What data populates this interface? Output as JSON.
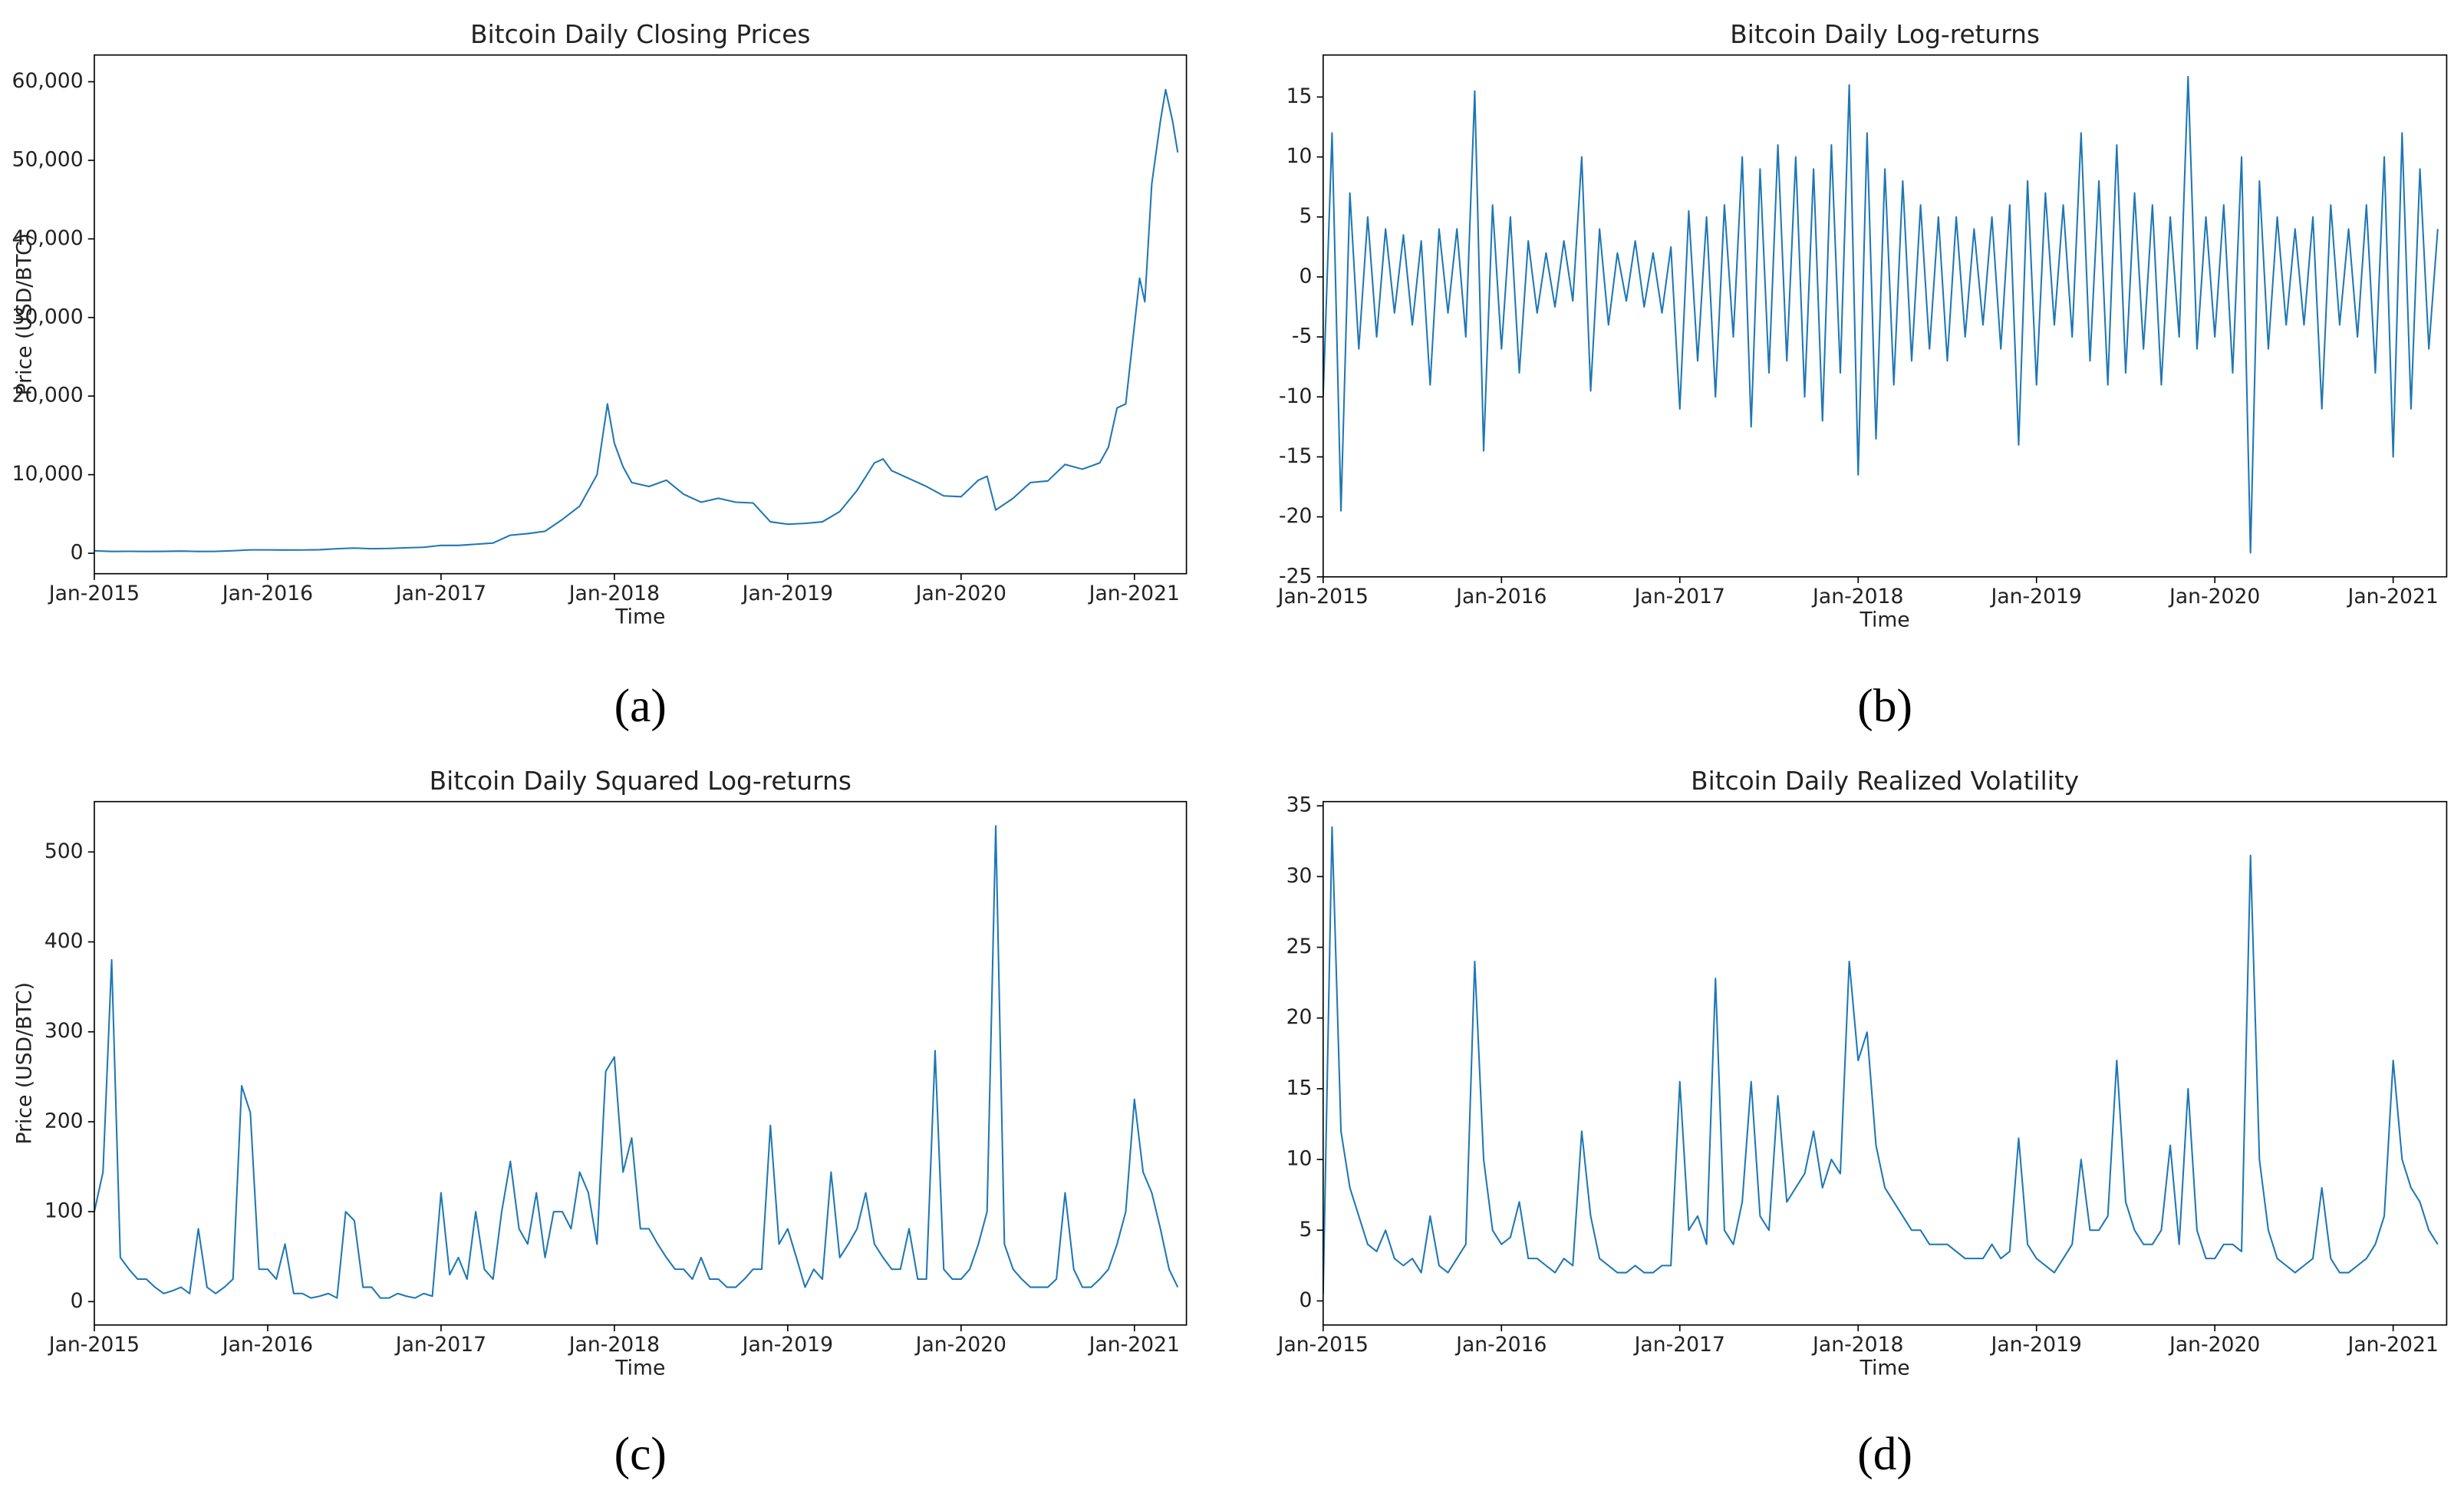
{
  "chart_data": [
    {
      "type": "line",
      "title": "Bitcoin Daily Closing Prices",
      "x_label": "Time",
      "y_label": "Price (USD/BTC)",
      "panel_label": "(a)",
      "color": "#1f77b4",
      "x": [
        2015,
        2015.1,
        2015.2,
        2015.3,
        2015.4,
        2015.5,
        2015.6,
        2015.7,
        2015.8,
        2015.9,
        2016,
        2016.1,
        2016.2,
        2016.3,
        2016.4,
        2016.5,
        2016.6,
        2016.7,
        2016.8,
        2016.9,
        2017,
        2017.1,
        2017.2,
        2017.3,
        2017.4,
        2017.5,
        2017.6,
        2017.7,
        2017.8,
        2017.9,
        2017.96,
        2018,
        2018.05,
        2018.1,
        2018.2,
        2018.3,
        2018.4,
        2018.5,
        2018.6,
        2018.7,
        2018.8,
        2018.9,
        2019,
        2019.1,
        2019.2,
        2019.3,
        2019.4,
        2019.5,
        2019.55,
        2019.6,
        2019.7,
        2019.8,
        2019.9,
        2020,
        2020.1,
        2020.15,
        2020.2,
        2020.3,
        2020.4,
        2020.5,
        2020.6,
        2020.7,
        2020.8,
        2020.85,
        2020.9,
        2020.95,
        2021,
        2021.03,
        2021.06,
        2021.1,
        2021.15,
        2021.18,
        2021.22,
        2021.25
      ],
      "values": [
        315,
        230,
        250,
        230,
        240,
        280,
        230,
        240,
        320,
        430,
        430,
        410,
        420,
        450,
        580,
        660,
        580,
        610,
        700,
        760,
        1000,
        1000,
        1150,
        1300,
        2300,
        2500,
        2800,
        4300,
        6000,
        10000,
        19000,
        14000,
        11000,
        9000,
        8500,
        9300,
        7500,
        6500,
        7000,
        6500,
        6400,
        4000,
        3700,
        3800,
        4000,
        5300,
        8000,
        11500,
        12000,
        10500,
        9500,
        8500,
        7300,
        7200,
        9300,
        9800,
        5500,
        7000,
        9000,
        9200,
        11300,
        10700,
        11500,
        13500,
        18500,
        19000,
        29000,
        35000,
        32000,
        47000,
        55000,
        59000,
        55000,
        51000
      ],
      "xlim": [
        2015,
        2021.3
      ],
      "ylim": [
        -2600,
        63400
      ],
      "xticks": [
        {
          "value": 2015,
          "label": "Jan-2015"
        },
        {
          "value": 2016,
          "label": "Jan-2016"
        },
        {
          "value": 2017,
          "label": "Jan-2017"
        },
        {
          "value": 2018,
          "label": "Jan-2018"
        },
        {
          "value": 2019,
          "label": "Jan-2019"
        },
        {
          "value": 2020,
          "label": "Jan-2020"
        },
        {
          "value": 2021,
          "label": "Jan-2021"
        }
      ],
      "yticks": [
        0,
        {
          "value": 10000,
          "label": "10,000"
        },
        {
          "value": 20000,
          "label": "20,000"
        },
        {
          "value": 30000,
          "label": "30,000"
        },
        {
          "value": 40000,
          "label": "40,000"
        },
        {
          "value": 50000,
          "label": "50,000"
        },
        {
          "value": 60000,
          "label": "60,000"
        }
      ]
    },
    {
      "type": "line",
      "title": "Bitcoin Daily Log-returns",
      "x_label": "Time",
      "panel_label": "(b)",
      "color": "#1f77b4",
      "x": [
        2015,
        2015.05,
        2015.1,
        2015.15,
        2015.2,
        2015.25,
        2015.3,
        2015.35,
        2015.4,
        2015.45,
        2015.5,
        2015.55,
        2015.6,
        2015.65,
        2015.7,
        2015.75,
        2015.8,
        2015.85,
        2015.9,
        2015.95,
        2016,
        2016.05,
        2016.1,
        2016.15,
        2016.2,
        2016.25,
        2016.3,
        2016.35,
        2016.4,
        2016.45,
        2016.5,
        2016.55,
        2016.6,
        2016.65,
        2016.7,
        2016.75,
        2016.8,
        2016.85,
        2016.9,
        2016.95,
        2017,
        2017.05,
        2017.1,
        2017.15,
        2017.2,
        2017.25,
        2017.3,
        2017.35,
        2017.4,
        2017.45,
        2017.5,
        2017.55,
        2017.6,
        2017.65,
        2017.7,
        2017.75,
        2017.8,
        2017.85,
        2017.9,
        2017.95,
        2018,
        2018.05,
        2018.1,
        2018.15,
        2018.2,
        2018.25,
        2018.3,
        2018.35,
        2018.4,
        2018.45,
        2018.5,
        2018.55,
        2018.6,
        2018.65,
        2018.7,
        2018.75,
        2018.8,
        2018.85,
        2018.9,
        2018.95,
        2019,
        2019.05,
        2019.1,
        2019.15,
        2019.2,
        2019.25,
        2019.3,
        2019.35,
        2019.4,
        2019.45,
        2019.5,
        2019.55,
        2019.6,
        2019.65,
        2019.7,
        2019.75,
        2019.8,
        2019.85,
        2019.9,
        2019.95,
        2020,
        2020.05,
        2020.1,
        2020.15,
        2020.2,
        2020.25,
        2020.3,
        2020.35,
        2020.4,
        2020.45,
        2020.5,
        2020.55,
        2020.6,
        2020.65,
        2020.7,
        2020.75,
        2020.8,
        2020.85,
        2020.9,
        2020.95,
        2021,
        2021.05,
        2021.1,
        2021.15,
        2021.2,
        2021.25
      ],
      "values": [
        -10,
        12,
        -19.5,
        7,
        -6,
        5,
        -5,
        4,
        -3,
        3.5,
        -4,
        3,
        -9,
        4,
        -3,
        4,
        -5,
        15.5,
        -14.5,
        6,
        -6,
        5,
        -8,
        3,
        -3,
        2,
        -2.5,
        3,
        -2,
        10,
        -9.5,
        4,
        -4,
        2,
        -2,
        3,
        -2.5,
        2,
        -3,
        2.5,
        -11,
        5.5,
        -7,
        5,
        -10,
        6,
        -5,
        10,
        -12.5,
        9,
        -8,
        11,
        -7,
        10,
        -10,
        9,
        -12,
        11,
        -8,
        16,
        -16.5,
        12,
        -13.5,
        9,
        -9,
        8,
        -7,
        6,
        -6,
        5,
        -7,
        5,
        -5,
        4,
        -4,
        5,
        -6,
        6,
        -14,
        8,
        -9,
        7,
        -4,
        6,
        -5,
        12,
        -7,
        8,
        -9,
        11,
        -8,
        7,
        -6,
        6,
        -9,
        5,
        -5,
        16.7,
        -6,
        5,
        -5,
        6,
        -8,
        10,
        -23,
        8,
        -6,
        5,
        -4,
        4,
        -4,
        5,
        -11,
        6,
        -4,
        4,
        -5,
        6,
        -8,
        10,
        -15,
        12,
        -11,
        9,
        -6,
        4
      ],
      "xlim": [
        2015,
        2021.3
      ],
      "ylim": [
        -25,
        18.5
      ],
      "xticks": [
        {
          "value": 2015,
          "label": "Jan-2015"
        },
        {
          "value": 2016,
          "label": "Jan-2016"
        },
        {
          "value": 2017,
          "label": "Jan-2017"
        },
        {
          "value": 2018,
          "label": "Jan-2018"
        },
        {
          "value": 2019,
          "label": "Jan-2019"
        },
        {
          "value": 2020,
          "label": "Jan-2020"
        },
        {
          "value": 2021,
          "label": "Jan-2021"
        }
      ],
      "yticks": [
        -25,
        -20,
        -15,
        -10,
        -5,
        0,
        5,
        10,
        15
      ]
    },
    {
      "type": "line",
      "title": "Bitcoin Daily Squared Log-returns",
      "x_label": "Time",
      "y_label": "Price (USD/BTC)",
      "panel_label": "(c)",
      "color": "#1f77b4",
      "x": [
        2015,
        2015.05,
        2015.1,
        2015.15,
        2015.2,
        2015.25,
        2015.3,
        2015.35,
        2015.4,
        2015.45,
        2015.5,
        2015.55,
        2015.6,
        2015.65,
        2015.7,
        2015.75,
        2015.8,
        2015.85,
        2015.9,
        2015.95,
        2016,
        2016.05,
        2016.1,
        2016.15,
        2016.2,
        2016.25,
        2016.3,
        2016.35,
        2016.4,
        2016.45,
        2016.5,
        2016.55,
        2016.6,
        2016.65,
        2016.7,
        2016.75,
        2016.8,
        2016.85,
        2016.9,
        2016.95,
        2017,
        2017.05,
        2017.1,
        2017.15,
        2017.2,
        2017.25,
        2017.3,
        2017.35,
        2017.4,
        2017.45,
        2017.5,
        2017.55,
        2017.6,
        2017.65,
        2017.7,
        2017.75,
        2017.8,
        2017.85,
        2017.9,
        2017.95,
        2018,
        2018.05,
        2018.1,
        2018.15,
        2018.2,
        2018.25,
        2018.3,
        2018.35,
        2018.4,
        2018.45,
        2018.5,
        2018.55,
        2018.6,
        2018.65,
        2018.7,
        2018.75,
        2018.8,
        2018.85,
        2018.9,
        2018.95,
        2019,
        2019.05,
        2019.1,
        2019.15,
        2019.2,
        2019.25,
        2019.3,
        2019.35,
        2019.4,
        2019.45,
        2019.5,
        2019.55,
        2019.6,
        2019.65,
        2019.7,
        2019.75,
        2019.8,
        2019.85,
        2019.9,
        2019.95,
        2020,
        2020.05,
        2020.1,
        2020.15,
        2020.2,
        2020.25,
        2020.3,
        2020.35,
        2020.4,
        2020.45,
        2020.5,
        2020.55,
        2020.6,
        2020.65,
        2020.7,
        2020.75,
        2020.8,
        2020.85,
        2020.9,
        2020.95,
        2021,
        2021.05,
        2021.1,
        2021.15,
        2021.2,
        2021.25
      ],
      "values": [
        100,
        144,
        380,
        49,
        36,
        25,
        25,
        16,
        9,
        12,
        16,
        9,
        81,
        16,
        9,
        16,
        25,
        240,
        210,
        36,
        36,
        25,
        64,
        9,
        9,
        4,
        6,
        9,
        4,
        100,
        90,
        16,
        16,
        4,
        4,
        9,
        6,
        4,
        9,
        6,
        121,
        30,
        49,
        25,
        100,
        36,
        25,
        100,
        156,
        81,
        64,
        121,
        49,
        100,
        100,
        81,
        144,
        121,
        64,
        256,
        272,
        144,
        182,
        81,
        81,
        64,
        49,
        36,
        36,
        25,
        49,
        25,
        25,
        16,
        16,
        25,
        36,
        36,
        196,
        64,
        81,
        49,
        16,
        36,
        25,
        144,
        49,
        64,
        81,
        121,
        64,
        49,
        36,
        36,
        81,
        25,
        25,
        279,
        36,
        25,
        25,
        36,
        64,
        100,
        529,
        64,
        36,
        25,
        16,
        16,
        16,
        25,
        121,
        36,
        16,
        16,
        25,
        36,
        64,
        100,
        225,
        144,
        121,
        81,
        36,
        16
      ],
      "xlim": [
        2015,
        2021.3
      ],
      "ylim": [
        -26,
        556
      ],
      "xticks": [
        {
          "value": 2015,
          "label": "Jan-2015"
        },
        {
          "value": 2016,
          "label": "Jan-2016"
        },
        {
          "value": 2017,
          "label": "Jan-2017"
        },
        {
          "value": 2018,
          "label": "Jan-2018"
        },
        {
          "value": 2019,
          "label": "Jan-2019"
        },
        {
          "value": 2020,
          "label": "Jan-2020"
        },
        {
          "value": 2021,
          "label": "Jan-2021"
        }
      ],
      "yticks": [
        0,
        100,
        200,
        300,
        400,
        500
      ]
    },
    {
      "type": "line",
      "title": "Bitcoin Daily Realized Volatility",
      "x_label": "Time",
      "panel_label": "(d)",
      "color": "#1f77b4",
      "x": [
        2015,
        2015.05,
        2015.1,
        2015.15,
        2015.2,
        2015.25,
        2015.3,
        2015.35,
        2015.4,
        2015.45,
        2015.5,
        2015.55,
        2015.6,
        2015.65,
        2015.7,
        2015.75,
        2015.8,
        2015.85,
        2015.9,
        2015.95,
        2016,
        2016.05,
        2016.1,
        2016.15,
        2016.2,
        2016.25,
        2016.3,
        2016.35,
        2016.4,
        2016.45,
        2016.5,
        2016.55,
        2016.6,
        2016.65,
        2016.7,
        2016.75,
        2016.8,
        2016.85,
        2016.9,
        2016.95,
        2017,
        2017.05,
        2017.1,
        2017.15,
        2017.2,
        2017.25,
        2017.3,
        2017.35,
        2017.4,
        2017.45,
        2017.5,
        2017.55,
        2017.6,
        2017.65,
        2017.7,
        2017.75,
        2017.8,
        2017.85,
        2017.9,
        2017.95,
        2018,
        2018.05,
        2018.1,
        2018.15,
        2018.2,
        2018.25,
        2018.3,
        2018.35,
        2018.4,
        2018.45,
        2018.5,
        2018.55,
        2018.6,
        2018.65,
        2018.7,
        2018.75,
        2018.8,
        2018.85,
        2018.9,
        2018.95,
        2019,
        2019.05,
        2019.1,
        2019.15,
        2019.2,
        2019.25,
        2019.3,
        2019.35,
        2019.4,
        2019.45,
        2019.5,
        2019.55,
        2019.6,
        2019.65,
        2019.7,
        2019.75,
        2019.8,
        2019.85,
        2019.9,
        2019.95,
        2020,
        2020.05,
        2020.1,
        2020.15,
        2020.2,
        2020.25,
        2020.3,
        2020.35,
        2020.4,
        2020.45,
        2020.5,
        2020.55,
        2020.6,
        2020.65,
        2020.7,
        2020.75,
        2020.8,
        2020.85,
        2020.9,
        2020.95,
        2021,
        2021.05,
        2021.1,
        2021.15,
        2021.2,
        2021.25
      ],
      "values": [
        0.5,
        33.5,
        12,
        8,
        6,
        4,
        3.5,
        5,
        3,
        2.5,
        3,
        2,
        6,
        2.5,
        2,
        3,
        4,
        24,
        10,
        5,
        4,
        4.5,
        7,
        3,
        3,
        2.5,
        2,
        3,
        2.5,
        12,
        6,
        3,
        2.5,
        2,
        2,
        2.5,
        2,
        2,
        2.5,
        2.5,
        15.5,
        5,
        6,
        4,
        22.8,
        5,
        4,
        7,
        15.5,
        6,
        5,
        14.5,
        7,
        8,
        9,
        12,
        8,
        10,
        9,
        24,
        17,
        19,
        11,
        8,
        7,
        6,
        5,
        5,
        4,
        4,
        4,
        3.5,
        3,
        3,
        3,
        4,
        3,
        3.5,
        11.5,
        4,
        3,
        2.5,
        2,
        3,
        4,
        10,
        5,
        5,
        6,
        17,
        7,
        5,
        4,
        4,
        5,
        11,
        4,
        15,
        5,
        3,
        3,
        4,
        4,
        3.5,
        31.5,
        10,
        5,
        3,
        2.5,
        2,
        2.5,
        3,
        8,
        3,
        2,
        2,
        2.5,
        3,
        4,
        6,
        17,
        10,
        8,
        7,
        5,
        4
      ],
      "xlim": [
        2015,
        2021.3
      ],
      "ylim": [
        -1.7,
        35.3
      ],
      "xticks": [
        {
          "value": 2015,
          "label": "Jan-2015"
        },
        {
          "value": 2016,
          "label": "Jan-2016"
        },
        {
          "value": 2017,
          "label": "Jan-2017"
        },
        {
          "value": 2018,
          "label": "Jan-2018"
        },
        {
          "value": 2019,
          "label": "Jan-2019"
        },
        {
          "value": 2020,
          "label": "Jan-2020"
        },
        {
          "value": 2021,
          "label": "Jan-2021"
        }
      ],
      "yticks": [
        0,
        5,
        10,
        15,
        20,
        25,
        30,
        35
      ]
    }
  ]
}
